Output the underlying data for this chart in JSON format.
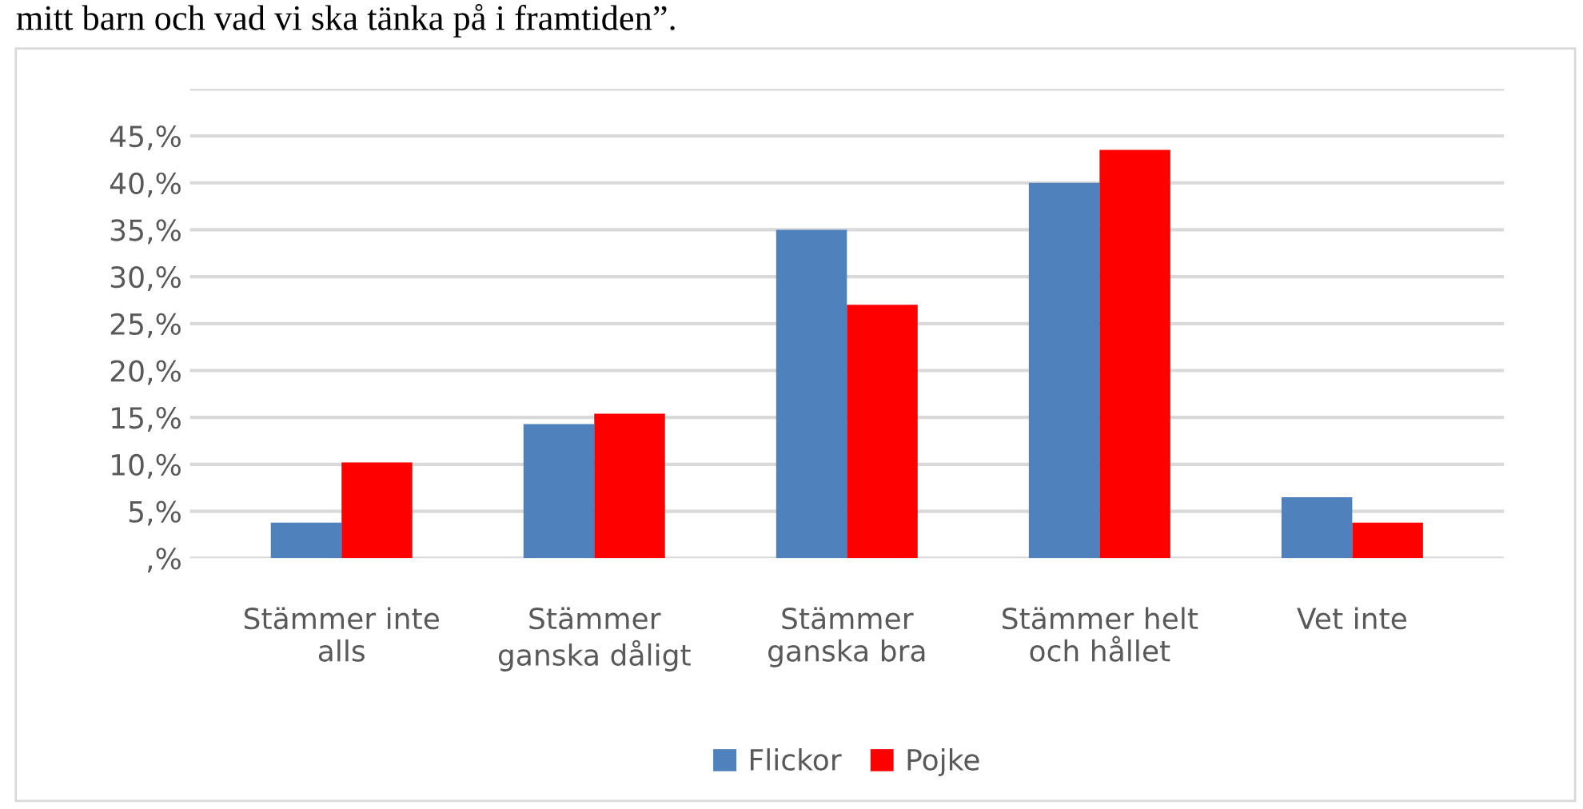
{
  "chart_data": {
    "type": "bar",
    "title": "mitt barn och vad vi ska tänka på i framtiden”.",
    "categories": [
      "Stämmer inte alls",
      "Stämmer ganska dåligt",
      "Stämmer ganska bra",
      "Stämmer helt och hållet",
      "Vet inte"
    ],
    "series": [
      {
        "name": "Flickor",
        "color": "#4f81bd",
        "values": [
          3.8,
          14.3,
          35,
          40,
          6.5
        ]
      },
      {
        "name": "Pojke",
        "color": "#ff0000",
        "values": [
          10.2,
          15.4,
          27,
          43.5,
          3.8
        ]
      }
    ],
    "ylim": [
      0,
      50
    ],
    "yticks": [
      {
        "value": 0,
        "label": ",%"
      },
      {
        "value": 5,
        "label": "5,%"
      },
      {
        "value": 10,
        "label": "10,%"
      },
      {
        "value": 15,
        "label": "15,%"
      },
      {
        "value": 20,
        "label": "20,%"
      },
      {
        "value": 25,
        "label": "25,%"
      },
      {
        "value": 30,
        "label": "30,%"
      },
      {
        "value": 35,
        "label": "35,%"
      },
      {
        "value": 40,
        "label": "40,%"
      },
      {
        "value": 45,
        "label": "45,%"
      },
      {
        "value": 50,
        "label": null
      }
    ],
    "grid": "y",
    "legend": "bottom"
  }
}
